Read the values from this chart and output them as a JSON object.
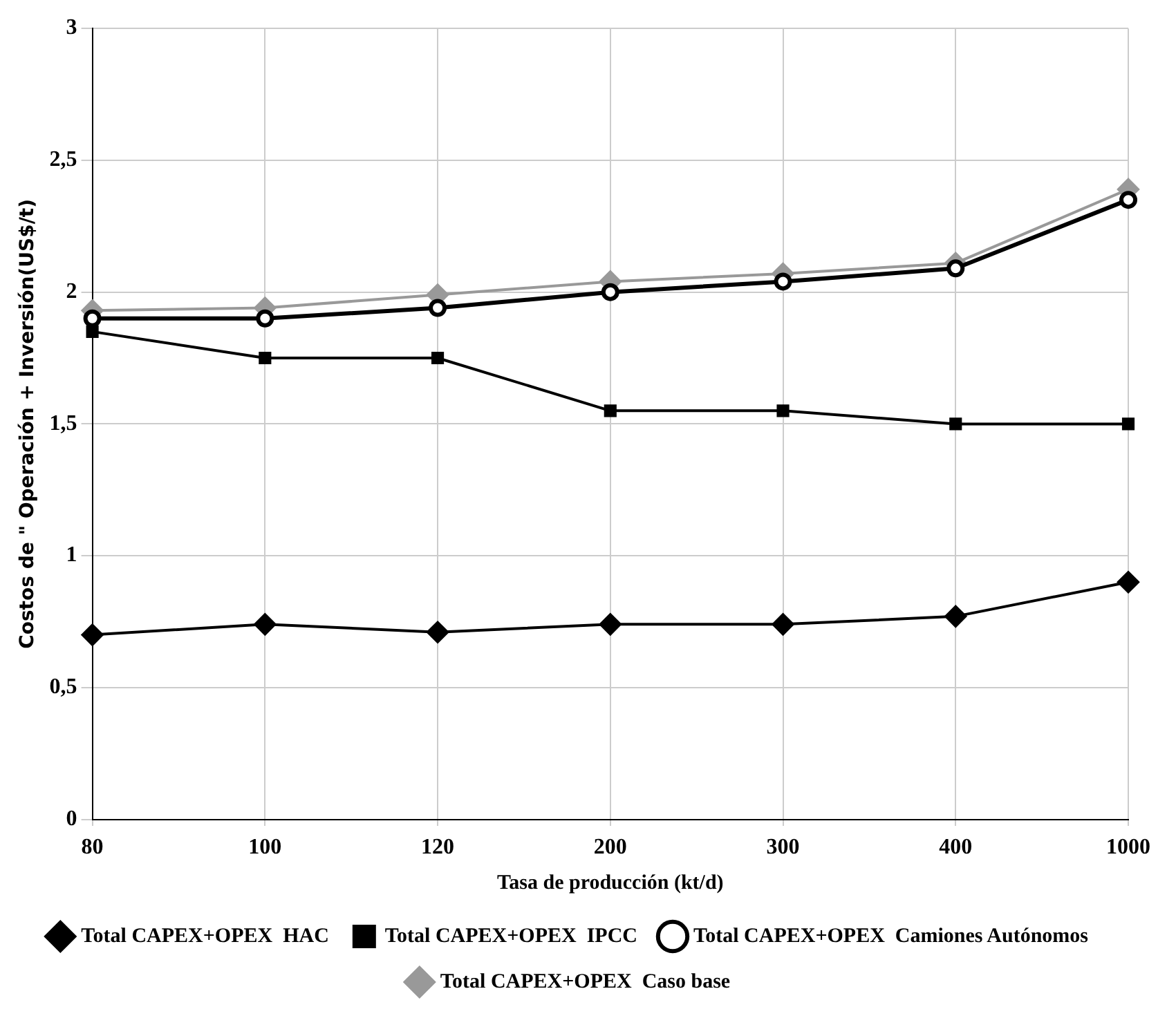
{
  "chart_data": {
    "type": "line",
    "xlabel": "Tasa de producción (kt/d)",
    "ylabel": "Costos de \" Operación + Inversión(US$/t)",
    "categories": [
      "80",
      "100",
      "120",
      "200",
      "300",
      "400",
      "1000"
    ],
    "series": [
      {
        "name": "Total CAPEX+OPEX  HAC",
        "color": "#000000",
        "marker": "diamond",
        "values": [
          0.7,
          0.74,
          0.71,
          0.74,
          0.74,
          0.77,
          0.9
        ]
      },
      {
        "name": "Total CAPEX+OPEX  IPCC",
        "color": "#000000",
        "marker": "square",
        "values": [
          1.85,
          1.75,
          1.75,
          1.55,
          1.55,
          1.5,
          1.5
        ]
      },
      {
        "name": "Total CAPEX+OPEX  Camiones Autónomos",
        "color": "#000000",
        "marker": "circle",
        "values": [
          1.9,
          1.9,
          1.94,
          2.0,
          2.04,
          2.09,
          2.35
        ]
      },
      {
        "name": "Total CAPEX+OPEX  Caso base",
        "color": "#999999",
        "marker": "diamond",
        "values": [
          1.93,
          1.94,
          1.99,
          2.04,
          2.07,
          2.11,
          2.39
        ]
      }
    ],
    "ylim": [
      0,
      3
    ],
    "yticks": [
      0,
      {
        "value": 0.5,
        "label": "0,5"
      },
      1,
      {
        "value": 1.5,
        "label": "1,5"
      },
      2,
      {
        "value": 2.5,
        "label": "2,5"
      },
      3
    ],
    "grid": true,
    "legend": "bottom",
    "line_style": "solid"
  }
}
